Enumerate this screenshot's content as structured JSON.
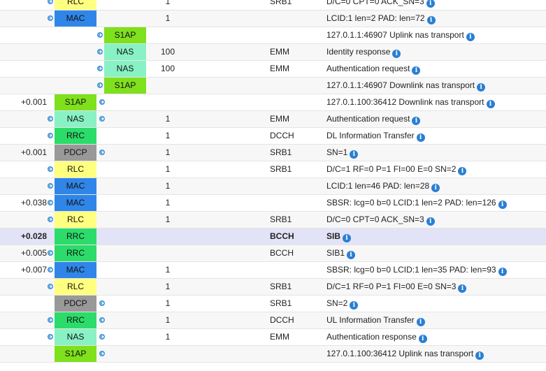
{
  "colors": {
    "RLC": "#ffff80",
    "MAC": "#2f86e8",
    "S1AP": "#7fe01c",
    "NAS": "#88f2c4",
    "RRC": "#2bdc6a",
    "PDCP": "#999999"
  },
  "rows": [
    {
      "time": "",
      "arrow_left": true,
      "layer": "RLC",
      "layer_col": 1,
      "arrow_right": false,
      "count": "1",
      "channel": "SRB1",
      "desc": "D/C=0 CPT=0 ACK_SN=3"
    },
    {
      "time": "",
      "arrow_left": true,
      "layer": "MAC",
      "layer_col": 1,
      "arrow_right": false,
      "count": "1",
      "channel": "",
      "desc": "LCID:1 len=2 PAD: len=72"
    },
    {
      "time": "",
      "arrow_left": true,
      "layer": "S1AP",
      "layer_col": 2,
      "arrow_right": false,
      "count": "",
      "channel": "",
      "desc": "127.0.1.1:46907 Uplink nas transport"
    },
    {
      "time": "",
      "arrow_left": true,
      "layer": "NAS",
      "layer_col": 2,
      "arrow_right": false,
      "count": "100",
      "channel": "EMM",
      "desc": "Identity response"
    },
    {
      "time": "",
      "arrow_left": true,
      "layer": "NAS",
      "layer_col": 2,
      "arrow_right": false,
      "count": "100",
      "channel": "EMM",
      "desc": "Authentication request"
    },
    {
      "time": "",
      "arrow_left": true,
      "layer": "S1AP",
      "layer_col": 2,
      "arrow_right": false,
      "count": "",
      "channel": "",
      "desc": "127.0.1.1:46907 Downlink nas transport"
    },
    {
      "time": "+0.001",
      "arrow_left": false,
      "layer": "S1AP",
      "layer_col": 1,
      "arrow_right": true,
      "count": "",
      "channel": "",
      "desc": "127.0.1.100:36412 Downlink nas transport"
    },
    {
      "time": "",
      "arrow_left": true,
      "layer": "NAS",
      "layer_col": 1,
      "arrow_right": true,
      "count": "1",
      "channel": "EMM",
      "desc": "Authentication request"
    },
    {
      "time": "",
      "arrow_left": true,
      "layer": "RRC",
      "layer_col": 1,
      "arrow_right": false,
      "count": "1",
      "channel": "DCCH",
      "desc": "DL Information Transfer"
    },
    {
      "time": "+0.001",
      "arrow_left": false,
      "layer": "PDCP",
      "layer_col": 1,
      "arrow_right": true,
      "count": "1",
      "channel": "SRB1",
      "desc": "SN=1"
    },
    {
      "time": "",
      "arrow_left": true,
      "layer": "RLC",
      "layer_col": 1,
      "arrow_right": false,
      "count": "1",
      "channel": "SRB1",
      "desc": "D/C=1 RF=0 P=1 FI=00 E=0 SN=2"
    },
    {
      "time": "",
      "arrow_left": true,
      "layer": "MAC",
      "layer_col": 1,
      "arrow_right": false,
      "count": "1",
      "channel": "",
      "desc": "LCID:1 len=46 PAD: len=28"
    },
    {
      "time": "+0.038",
      "arrow_left": true,
      "layer": "MAC",
      "layer_col": 1,
      "arrow_right": false,
      "count": "1",
      "channel": "",
      "desc": "SBSR: lcg=0 b=0 LCID:1 len=2 PAD: len=126"
    },
    {
      "time": "",
      "arrow_left": true,
      "layer": "RLC",
      "layer_col": 1,
      "arrow_right": false,
      "count": "1",
      "channel": "SRB1",
      "desc": "D/C=0 CPT=0 ACK_SN=3"
    },
    {
      "time": "+0.028",
      "arrow_left": false,
      "layer": "RRC",
      "layer_col": 1,
      "arrow_right": false,
      "count": "",
      "channel": "BCCH",
      "desc": "SIB",
      "selected": true
    },
    {
      "time": "+0.005",
      "arrow_left": true,
      "layer": "RRC",
      "layer_col": 1,
      "arrow_right": false,
      "count": "",
      "channel": "BCCH",
      "desc": "SIB1"
    },
    {
      "time": "+0.007",
      "arrow_left": true,
      "layer": "MAC",
      "layer_col": 1,
      "arrow_right": false,
      "count": "1",
      "channel": "",
      "desc": "SBSR: lcg=0 b=0 LCID:1 len=35 PAD: len=93"
    },
    {
      "time": "",
      "arrow_left": true,
      "layer": "RLC",
      "layer_col": 1,
      "arrow_right": false,
      "count": "1",
      "channel": "SRB1",
      "desc": "D/C=1 RF=0 P=1 FI=00 E=0 SN=3"
    },
    {
      "time": "",
      "arrow_left": false,
      "layer": "PDCP",
      "layer_col": 1,
      "arrow_right": true,
      "count": "1",
      "channel": "SRB1",
      "desc": "SN=2"
    },
    {
      "time": "",
      "arrow_left": true,
      "layer": "RRC",
      "layer_col": 1,
      "arrow_right": true,
      "count": "1",
      "channel": "DCCH",
      "desc": "UL Information Transfer"
    },
    {
      "time": "",
      "arrow_left": true,
      "layer": "NAS",
      "layer_col": 1,
      "arrow_right": true,
      "count": "1",
      "channel": "EMM",
      "desc": "Authentication response"
    },
    {
      "time": "",
      "arrow_left": false,
      "layer": "S1AP",
      "layer_col": 1,
      "arrow_right": true,
      "count": "",
      "channel": "",
      "desc": "127.0.1.100:36412 Uplink nas transport"
    }
  ]
}
